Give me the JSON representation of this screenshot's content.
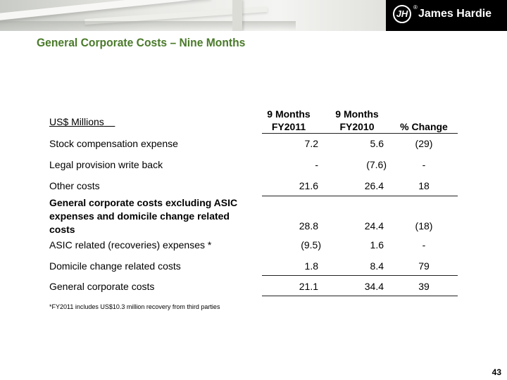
{
  "slide": {
    "title": "General Corporate Costs – Nine Months",
    "page_number": "43"
  },
  "logo": {
    "mark": "JH",
    "registered": "®",
    "name": "James Hardie"
  },
  "table": {
    "header": {
      "label": "US$ Millions",
      "col1_line1": "9 Months",
      "col1_line2": "FY2011",
      "col2_line1": "9 Months",
      "col2_line2": "FY2010",
      "col3": "% Change"
    },
    "rows": [
      {
        "label": "Stock compensation expense",
        "fy2011": "7.2",
        "fy2010": "5.6",
        "change": "(29)"
      },
      {
        "label": "Legal provision write back",
        "fy2011": "-",
        "fy2010": "(7.6)",
        "change": "-"
      },
      {
        "label": "Other costs",
        "fy2011": "21.6",
        "fy2010": "26.4",
        "change": "18"
      },
      {
        "label_line1": "General corporate costs excluding ASIC",
        "label_line2": "expenses and domicile change related",
        "label_line3": "costs",
        "fy2011": "28.8",
        "fy2010": "24.4",
        "change": "(18)"
      },
      {
        "label": "ASIC related (recoveries) expenses *",
        "fy2011": "(9.5)",
        "fy2010": "1.6",
        "change": "-"
      },
      {
        "label": "Domicile change related costs",
        "fy2011": "1.8",
        "fy2010": "8.4",
        "change": "79"
      },
      {
        "label": "General corporate costs",
        "fy2011": "21.1",
        "fy2010": "34.4",
        "change": "39"
      }
    ]
  },
  "footnote": "*FY2011 includes US$10.3 million recovery from third parties"
}
